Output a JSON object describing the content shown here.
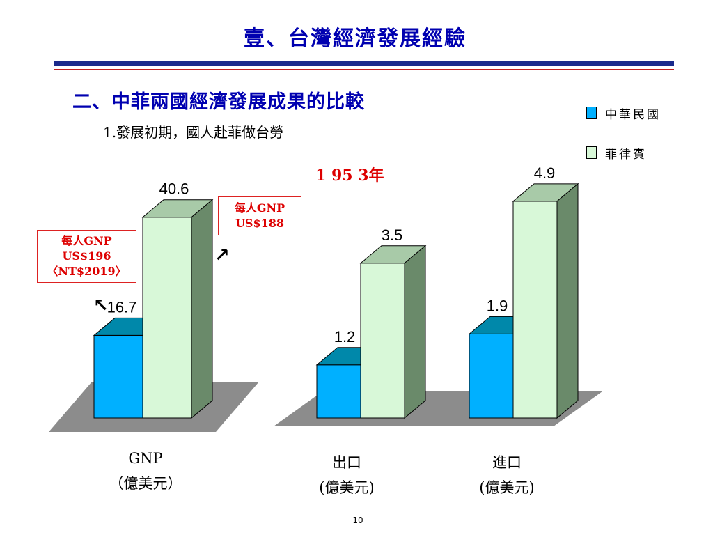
{
  "slide": {
    "title": "壹、台灣經濟發展經驗",
    "heading": "二、中菲兩國經濟發展成果的比較",
    "subheading": "1.發展初期，國人赴菲做台勞",
    "year_label": "1 95 3年",
    "page_number": "10"
  },
  "callouts": {
    "roc": [
      "每人GNP",
      "US$196",
      "〈NT$2019〉"
    ],
    "ph": [
      "每人GNP",
      "US$188"
    ]
  },
  "chart_data": {
    "type": "bar",
    "title": "1 95 3年",
    "groups": [
      {
        "category": "GNP",
        "unit": "（億美元）",
        "values": [
          16.7,
          40.6
        ]
      },
      {
        "category": "出口",
        "unit": "(億美元)",
        "values": [
          1.2,
          3.5
        ]
      },
      {
        "category": "進口",
        "unit": "(億美元)",
        "values": [
          1.9,
          4.9
        ]
      }
    ],
    "series": [
      {
        "name": "中華民國",
        "color": "#00b0ff"
      },
      {
        "name": "菲律賓",
        "color": "#d8f8d8"
      }
    ],
    "value_labels": {
      "GNP": [
        "16.7",
        "40.6"
      ],
      "出口": [
        "1.2",
        "3.5"
      ],
      "進口": [
        "1.9",
        "4.9"
      ]
    },
    "legend_position": "top-right",
    "grid": false
  },
  "colors": {
    "title_blue": "#0000b0",
    "accent_red": "#dd0000",
    "floor_gray": "#8c8c8c"
  }
}
